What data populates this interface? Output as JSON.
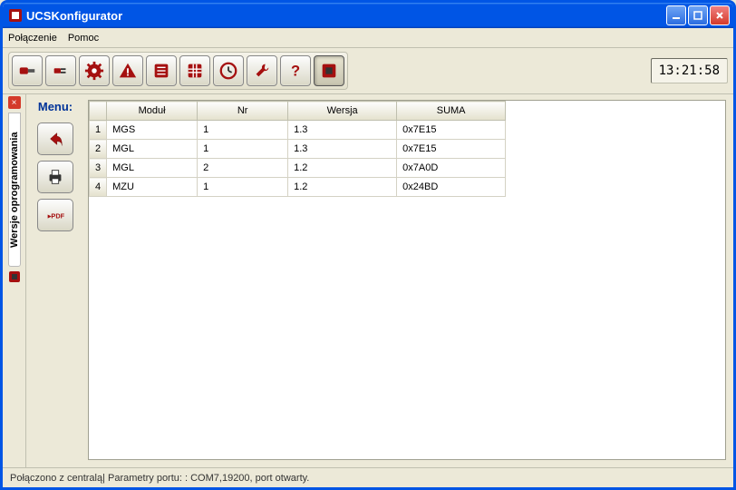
{
  "window": {
    "title": "UCSKonfigurator"
  },
  "menubar": {
    "items": [
      "Połączenie",
      "Pomoc"
    ]
  },
  "toolbar": {
    "clock": "13:21:58",
    "buttons": [
      {
        "name": "connect-icon"
      },
      {
        "name": "plug-icon"
      },
      {
        "name": "gear-icon"
      },
      {
        "name": "alert-icon"
      },
      {
        "name": "list-icon"
      },
      {
        "name": "grid-icon"
      },
      {
        "name": "clock-icon"
      },
      {
        "name": "wrench-icon"
      },
      {
        "name": "help-icon"
      },
      {
        "name": "version-icon",
        "active": true
      }
    ]
  },
  "side_tab": {
    "label": "Wersje oprogramowania"
  },
  "menu_panel": {
    "title": "Menu:",
    "buttons": [
      {
        "name": "back-icon"
      },
      {
        "name": "print-icon"
      },
      {
        "name": "pdf-icon"
      }
    ]
  },
  "table": {
    "columns": [
      "Moduł",
      "Nr",
      "Wersja",
      "SUMA"
    ],
    "rows": [
      {
        "idx": "1",
        "mod": "MGS",
        "nr": "1",
        "ver": "1.3",
        "sum": "0x7E15"
      },
      {
        "idx": "2",
        "mod": "MGL",
        "nr": "1",
        "ver": "1.3",
        "sum": "0x7E15"
      },
      {
        "idx": "3",
        "mod": "MGL",
        "nr": "2",
        "ver": "1.2",
        "sum": "0x7A0D"
      },
      {
        "idx": "4",
        "mod": "MZU",
        "nr": "1",
        "ver": "1.2",
        "sum": "0x24BD"
      }
    ]
  },
  "statusbar": {
    "text": "Połączono z centralą| Parametry portu: : COM7,19200, port otwarty."
  },
  "colors": {
    "accent_red": "#a51010",
    "titlebar": "#0055e5"
  }
}
